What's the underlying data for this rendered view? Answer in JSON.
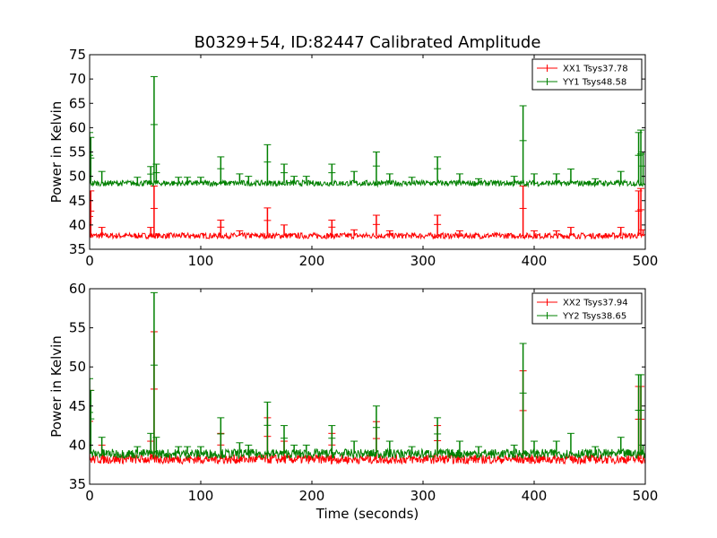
{
  "chart_data": [
    {
      "type": "line",
      "title": "B0329+54, ID:82447 Calibrated Amplitude",
      "xlabel": "",
      "ylabel": "Power in Kelvin",
      "xlim": [
        0,
        500
      ],
      "ylim": [
        35,
        75
      ],
      "xticks": [
        0,
        100,
        200,
        300,
        400,
        500
      ],
      "yticks": [
        35,
        40,
        45,
        50,
        55,
        60,
        65,
        70,
        75
      ],
      "grid": false,
      "legend_position": "top-right",
      "series": [
        {
          "name": "XX1 Tsys37.78",
          "color": "#ff0000",
          "baseline": 37.78,
          "spikes": [
            [
              0,
              45
            ],
            [
              1,
              47
            ],
            [
              11,
              39.5
            ],
            [
              55,
              39.5
            ],
            [
              58,
              48
            ],
            [
              118,
              41
            ],
            [
              135,
              38.8
            ],
            [
              160,
              43.5
            ],
            [
              175,
              40
            ],
            [
              218,
              41
            ],
            [
              238,
              39
            ],
            [
              258,
              42
            ],
            [
              270,
              38.8
            ],
            [
              313,
              42
            ],
            [
              333,
              38.8
            ],
            [
              390,
              48
            ],
            [
              400,
              38.8
            ],
            [
              420,
              38.8
            ],
            [
              433,
              39.5
            ],
            [
              478,
              39.5
            ],
            [
              494,
              47
            ],
            [
              496,
              47.5
            ],
            [
              498,
              39
            ]
          ]
        },
        {
          "name": "YY1 Tsys48.58",
          "color": "#008000",
          "baseline": 48.58,
          "spikes": [
            [
              0,
              59
            ],
            [
              1,
              58
            ],
            [
              11,
              51
            ],
            [
              43,
              49.8
            ],
            [
              55,
              52
            ],
            [
              58,
              70.5
            ],
            [
              60,
              52.5
            ],
            [
              80,
              49.8
            ],
            [
              88,
              49.8
            ],
            [
              100,
              49.8
            ],
            [
              118,
              54
            ],
            [
              135,
              50.5
            ],
            [
              143,
              50
            ],
            [
              160,
              56.5
            ],
            [
              175,
              52.5
            ],
            [
              184,
              50
            ],
            [
              195,
              50
            ],
            [
              218,
              52.5
            ],
            [
              238,
              51
            ],
            [
              258,
              55
            ],
            [
              270,
              50.5
            ],
            [
              290,
              49.8
            ],
            [
              313,
              54
            ],
            [
              333,
              50.5
            ],
            [
              350,
              49.5
            ],
            [
              382,
              50
            ],
            [
              390,
              64.5
            ],
            [
              400,
              50.5
            ],
            [
              420,
              50.5
            ],
            [
              433,
              51.5
            ],
            [
              455,
              49.5
            ],
            [
              478,
              51
            ],
            [
              494,
              59
            ],
            [
              496,
              59.5
            ],
            [
              498,
              55
            ]
          ]
        }
      ]
    },
    {
      "type": "line",
      "title": "",
      "xlabel": "Time (seconds)",
      "ylabel": "Power in Kelvin",
      "xlim": [
        0,
        500
      ],
      "ylim": [
        35,
        60
      ],
      "xticks": [
        0,
        100,
        200,
        300,
        400,
        500
      ],
      "yticks": [
        35,
        40,
        45,
        50,
        55,
        60
      ],
      "grid": false,
      "legend_position": "top-right",
      "series": [
        {
          "name": "XX2 Tsys37.94",
          "color": "#ff0000",
          "baseline": 38.2,
          "spikes": [
            [
              0,
              47
            ],
            [
              11,
              40
            ],
            [
              55,
              40.5
            ],
            [
              58,
              54.5
            ],
            [
              118,
              41.5
            ],
            [
              160,
              43.5
            ],
            [
              175,
              40.5
            ],
            [
              218,
              41.5
            ],
            [
              258,
              43
            ],
            [
              313,
              42.5
            ],
            [
              390,
              49.5
            ],
            [
              494,
              47.5
            ],
            [
              496,
              47.5
            ]
          ]
        },
        {
          "name": "YY2 Tsys38.65",
          "color": "#008000",
          "baseline": 38.9,
          "spikes": [
            [
              0,
              48.5
            ],
            [
              1,
              47
            ],
            [
              11,
              41
            ],
            [
              43,
              39.8
            ],
            [
              55,
              41.5
            ],
            [
              58,
              59.5
            ],
            [
              60,
              41
            ],
            [
              80,
              39.8
            ],
            [
              88,
              39.8
            ],
            [
              100,
              39.8
            ],
            [
              118,
              43.5
            ],
            [
              135,
              40.3
            ],
            [
              143,
              40
            ],
            [
              160,
              45.5
            ],
            [
              175,
              42.5
            ],
            [
              184,
              40
            ],
            [
              195,
              40
            ],
            [
              218,
              42.5
            ],
            [
              238,
              40.5
            ],
            [
              258,
              45
            ],
            [
              270,
              40.5
            ],
            [
              290,
              39.8
            ],
            [
              313,
              43.5
            ],
            [
              333,
              40.5
            ],
            [
              350,
              39.8
            ],
            [
              382,
              40
            ],
            [
              390,
              53
            ],
            [
              400,
              40.5
            ],
            [
              420,
              40.5
            ],
            [
              433,
              41.5
            ],
            [
              455,
              39.8
            ],
            [
              478,
              41
            ],
            [
              494,
              49
            ],
            [
              496,
              49
            ],
            [
              498,
              40
            ]
          ]
        }
      ]
    }
  ]
}
